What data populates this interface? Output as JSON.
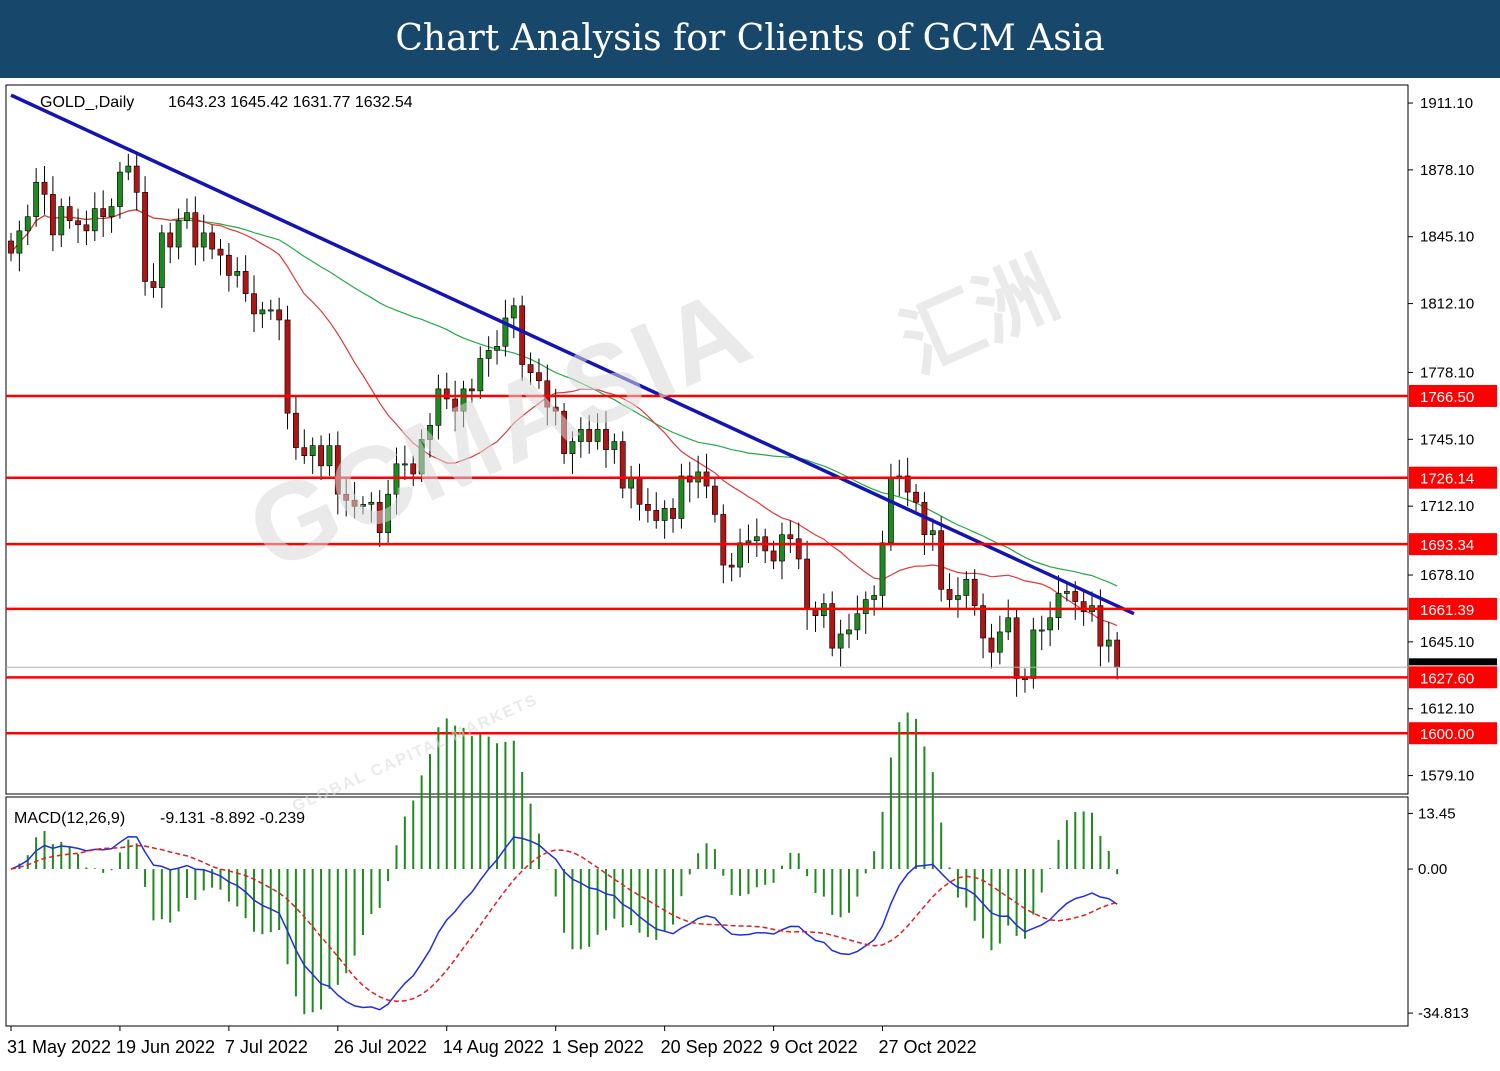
{
  "header": {
    "title": "Chart Analysis for Clients of GCM Asia"
  },
  "watermark": {
    "brand": "GCMASIA",
    "cjk": "汇洲",
    "tagline": "GLOBAL CAPITAL MARKETS"
  },
  "chart_data": [
    {
      "type": "candlestick",
      "title": "GOLD_,Daily",
      "ohlc_readout": "1643.23 1645.42 1631.77 1632.54",
      "ylim": [
        1570,
        1920
      ],
      "y_ticks": [
        "1911.10",
        "1878.10",
        "1845.10",
        "1812.10",
        "1778.10",
        "1745.10",
        "1712.10",
        "1678.10",
        "1645.10",
        "1612.10",
        "1579.10"
      ],
      "current_price": 1632.54,
      "x_ticks": [
        {
          "label": "31 May 2022",
          "index": 0
        },
        {
          "label": "19 Jun 2022",
          "index": 13
        },
        {
          "label": "7 Jul 2022",
          "index": 26
        },
        {
          "label": "26 Jul 2022",
          "index": 39
        },
        {
          "label": "14 Aug 2022",
          "index": 52
        },
        {
          "label": "1 Sep 2022",
          "index": 65
        },
        {
          "label": "20 Sep 2022",
          "index": 78
        },
        {
          "label": "9 Oct 2022",
          "index": 91
        },
        {
          "label": "27 Oct 2022",
          "index": 104
        }
      ],
      "closes": [
        1837,
        1848,
        1855,
        1872,
        1866,
        1846,
        1860,
        1853,
        1851,
        1848,
        1859,
        1855,
        1860,
        1877,
        1880,
        1867,
        1823,
        1820,
        1847,
        1840,
        1853,
        1857,
        1840,
        1847,
        1839,
        1836,
        1826,
        1828,
        1817,
        1807,
        1809,
        1809,
        1804,
        1758,
        1741,
        1737,
        1742,
        1732,
        1742,
        1718,
        1715,
        1712,
        1713,
        1714,
        1699,
        1718,
        1733,
        1733,
        1728,
        1745,
        1752,
        1770,
        1765,
        1759,
        1770,
        1769,
        1785,
        1789,
        1791,
        1805,
        1811,
        1782,
        1778,
        1774,
        1761,
        1759,
        1738,
        1744,
        1750,
        1744,
        1750,
        1740,
        1744,
        1721,
        1726,
        1713,
        1710,
        1705,
        1711,
        1706,
        1727,
        1724,
        1729,
        1722,
        1708,
        1683,
        1682,
        1694,
        1695,
        1697,
        1690,
        1685,
        1698,
        1696,
        1686,
        1661,
        1658,
        1664,
        1642,
        1649,
        1651,
        1659,
        1666,
        1668,
        1694,
        1726,
        1727,
        1719,
        1714,
        1698,
        1700,
        1671,
        1666,
        1668,
        1676,
        1663,
        1647,
        1640,
        1650,
        1657,
        1627,
        1627,
        1651,
        1651,
        1657,
        1669,
        1670,
        1665,
        1660,
        1663,
        1643,
        1646,
        1632.54
      ],
      "upper_bands_note": "",
      "levels": [
        1766.5,
        1726.14,
        1693.34,
        1661.39,
        1627.6,
        1600.0
      ],
      "level_labels": [
        "1766.50",
        "1726.14",
        "1693.34",
        "1661.39",
        "1627.60",
        "1600.00"
      ],
      "trendline": {
        "from": [
          0,
          1915
        ],
        "to": [
          134,
          1659
        ]
      },
      "colors": {
        "bull": "#1f8a1f",
        "bear": "#b01515",
        "ma_fast": "#e03a3a",
        "ma_slow": "#26a845",
        "trend": "#1414b4",
        "level": "#ff0000",
        "level_label_bg": "#ff0000",
        "price_marker": "#000000"
      }
    },
    {
      "type": "macd",
      "title": "MACD(12,26,9)",
      "readout": "-9.131 -8.892 -0.239",
      "params": [
        12,
        26,
        9
      ],
      "ylim": [
        -36,
        15
      ],
      "y_ticks": [
        "13.45",
        "0.00",
        "-34.813"
      ],
      "colors": {
        "histogram": "#1f8a1f",
        "macd": "#1f2ee0",
        "signal": "#e02020"
      }
    }
  ]
}
